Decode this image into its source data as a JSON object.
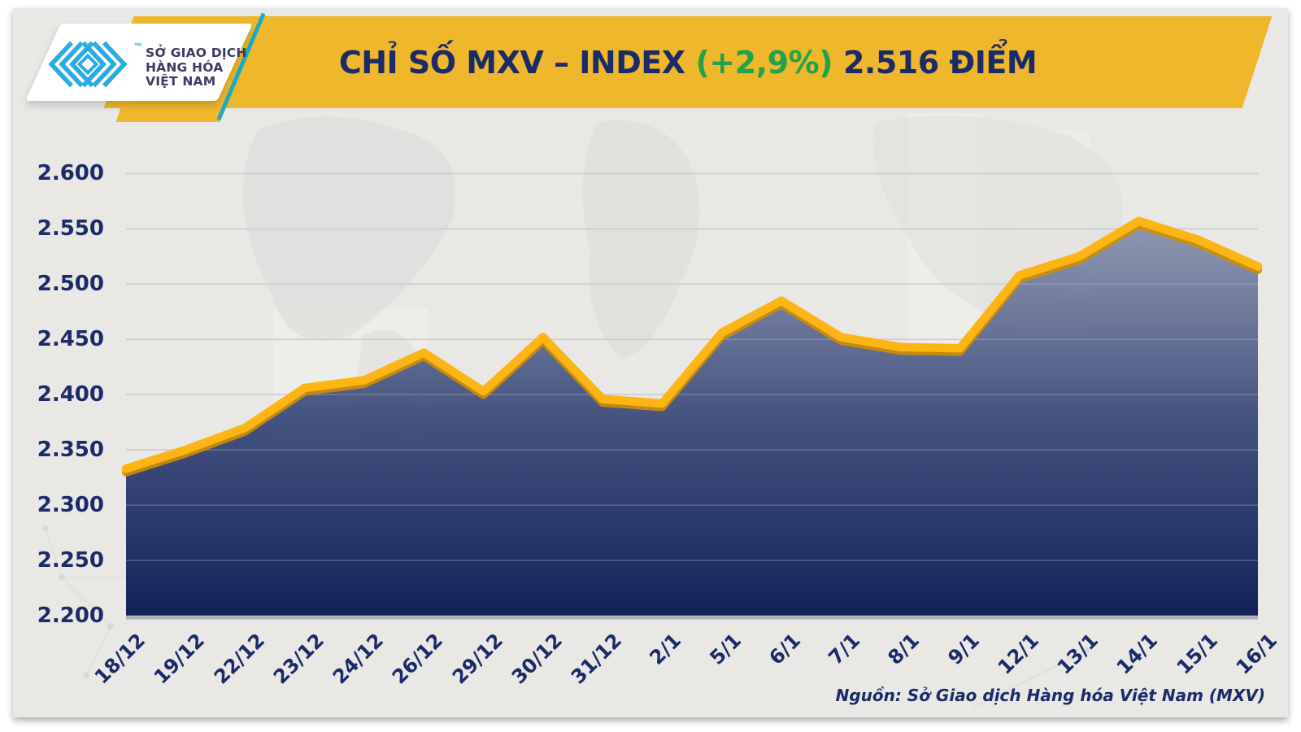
{
  "header": {
    "title_main": "CHỈ SỐ MXV – INDEX",
    "title_change": "(+2,9%)",
    "title_points": "2.516 ĐIỂM",
    "banner_color": "#EFB72B",
    "title_color": "#1B2A68",
    "change_color": "#1FA34B"
  },
  "logo": {
    "line1": "SỞ GIAO DỊCH",
    "line2": "HÀNG HÓA",
    "line3": "VIỆT NAM",
    "trademark": "™",
    "mark_color": "#2AACE2",
    "text_color": "#3E3A66"
  },
  "footer": {
    "source": "Nguồn: Sở Giao dịch Hàng hóa Việt Nam (MXV)"
  },
  "chart_data": {
    "type": "area",
    "title": "CHỈ SỐ MXV – INDEX (+2,9%) 2.516 ĐIỂM",
    "categories": [
      "18/12",
      "19/12",
      "22/12",
      "23/12",
      "24/12",
      "26/12",
      "29/12",
      "30/12",
      "31/12",
      "2/1",
      "5/1",
      "6/1",
      "7/1",
      "8/1",
      "9/1",
      "12/1",
      "13/1",
      "14/1",
      "15/1",
      "16/1"
    ],
    "values": [
      2333,
      2350,
      2370,
      2406,
      2413,
      2438,
      2403,
      2452,
      2396,
      2392,
      2456,
      2485,
      2452,
      2443,
      2442,
      2508,
      2525,
      2557,
      2540,
      2516
    ],
    "y_ticks": [
      2200,
      2250,
      2300,
      2350,
      2400,
      2450,
      2500,
      2550,
      2600
    ],
    "y_tick_labels": [
      "2.200",
      "2.250",
      "2.300",
      "2.350",
      "2.400",
      "2.450",
      "2.500",
      "2.550",
      "2.600"
    ],
    "ylim": [
      2200,
      2600
    ],
    "grid": true,
    "legend": "none",
    "xlabel": "",
    "ylabel": "",
    "line_color": "#FCB514",
    "line_shadow_color": "#D08E00",
    "area_top_color": "#8790AB",
    "area_mid_color": "#3F4E7C",
    "area_bottom_color": "#13235A",
    "grid_color": "#C6C8CA",
    "label_color": "#1B2A68",
    "unit": "điểm"
  }
}
